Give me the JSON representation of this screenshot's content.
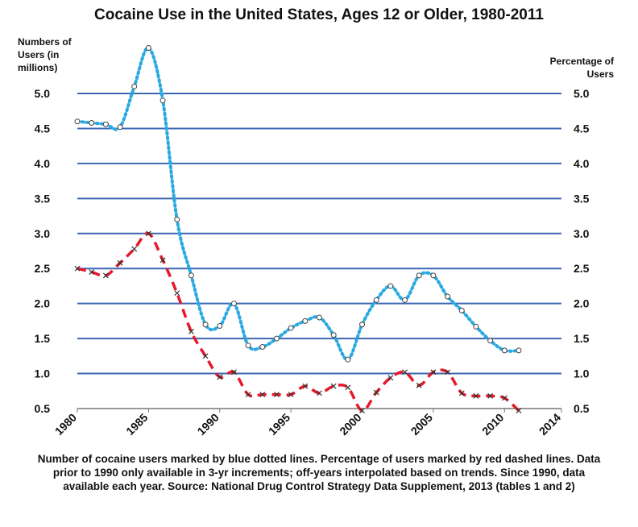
{
  "chart_data": {
    "type": "line",
    "title": "Cocaine Use in the United States, Ages 12 or Older, 1980-2011",
    "ylabel_left": "Numbers of Users (in millions)",
    "ylabel_right": "Percentage of Users",
    "xlabel": "",
    "xlim": [
      1980,
      2014
    ],
    "ylim": [
      0.5,
      5.0
    ],
    "grid": true,
    "x_ticks": [
      "1980",
      "1985",
      "1990",
      "1995",
      "2000",
      "2005",
      "2010",
      "2014"
    ],
    "y_ticks": [
      "5.0",
      "4.5",
      "4.0",
      "3.5",
      "3.0",
      "2.5",
      "2.0",
      "1.5",
      "1.0",
      "0.5"
    ],
    "series": [
      {
        "name": "Number of cocaine users (millions)",
        "style": "blue dotted",
        "color": "#29a9e1",
        "x": [
          1980,
          1981,
          1982,
          1983,
          1984,
          1985,
          1986,
          1987,
          1988,
          1989,
          1990,
          1991,
          1992,
          1993,
          1994,
          1995,
          1996,
          1997,
          1998,
          1999,
          2000,
          2001,
          2002,
          2003,
          2004,
          2005,
          2006,
          2007,
          2008,
          2009,
          2010,
          2011
        ],
        "values": [
          4.6,
          4.58,
          4.56,
          4.52,
          5.1,
          5.65,
          4.9,
          3.2,
          2.4,
          1.7,
          1.68,
          2.0,
          1.4,
          1.38,
          1.5,
          1.65,
          1.75,
          1.8,
          1.55,
          1.2,
          1.7,
          2.05,
          2.25,
          2.05,
          2.4,
          2.4,
          2.1,
          1.9,
          1.67,
          1.47,
          1.33,
          1.33
        ]
      },
      {
        "name": "Percentage of users",
        "style": "red dashed",
        "color": "#e8182b",
        "x": [
          1980,
          1981,
          1982,
          1983,
          1984,
          1985,
          1986,
          1987,
          1988,
          1989,
          1990,
          1991,
          1992,
          1993,
          1994,
          1995,
          1996,
          1997,
          1998,
          1999,
          2000,
          2001,
          2002,
          2003,
          2004,
          2005,
          2006,
          2007,
          2008,
          2009,
          2010,
          2011
        ],
        "values": [
          2.5,
          2.45,
          2.4,
          2.58,
          2.78,
          3.0,
          2.62,
          2.15,
          1.6,
          1.25,
          0.95,
          1.02,
          0.7,
          0.7,
          0.7,
          0.7,
          0.82,
          0.72,
          0.82,
          0.8,
          0.47,
          0.73,
          0.94,
          1.02,
          0.83,
          1.02,
          1.02,
          0.72,
          0.68,
          0.68,
          0.65,
          0.47
        ]
      }
    ]
  },
  "caption": "Number of cocaine users marked by blue dotted lines. Percentage of users marked by red dashed lines. Data prior to 1990 only available in 3-yr increments; off-years interpolated based on trends. Since 1990, data available each year. Source: National Drug Control Strategy Data Supplement, 2013 (tables 1 and 2)"
}
